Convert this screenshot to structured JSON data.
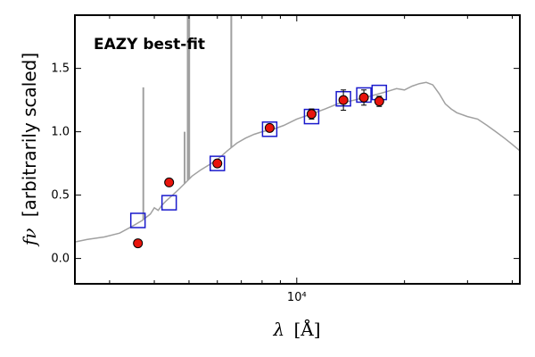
{
  "chart_data": {
    "type": "scatter",
    "annotation": "EAZY best-fit",
    "xlabel_symbol": "λ",
    "xlabel_unit": "[Å]",
    "ylabel_symbol": "fν",
    "ylabel_text": "[arbitrarily scaled]",
    "x_scale": "log",
    "xlim": [
      2400,
      42000
    ],
    "ylim": [
      -0.2,
      1.92
    ],
    "x_ticklabels": [
      {
        "value": 10000,
        "label": "10⁴"
      }
    ],
    "y_ticks": [
      0.0,
      0.5,
      1.0,
      1.5
    ],
    "y_ticklabels": [
      "0.0",
      "0.5",
      "1.0",
      "1.5"
    ],
    "grid": false,
    "colors": {
      "observed": "#e8140c",
      "model_photometry": "#1a1acc",
      "template": "#a0a0a0",
      "annotation": "#ff0000"
    },
    "observed_photometry": [
      {
        "x": 3600,
        "y": 0.12,
        "err": 0.02
      },
      {
        "x": 4400,
        "y": 0.6,
        "err": 0.02
      },
      {
        "x": 6000,
        "y": 0.75,
        "err": 0.02
      },
      {
        "x": 8400,
        "y": 1.03,
        "err": 0.02
      },
      {
        "x": 11000,
        "y": 1.14,
        "err": 0.04
      },
      {
        "x": 13500,
        "y": 1.25,
        "err": 0.08
      },
      {
        "x": 15400,
        "y": 1.27,
        "err": 0.06
      },
      {
        "x": 17000,
        "y": 1.24,
        "err": 0.04
      }
    ],
    "model_photometry": [
      {
        "x": 3600,
        "y": 0.3
      },
      {
        "x": 4400,
        "y": 0.44
      },
      {
        "x": 6000,
        "y": 0.75
      },
      {
        "x": 8400,
        "y": 1.02
      },
      {
        "x": 11000,
        "y": 1.12
      },
      {
        "x": 13500,
        "y": 1.26
      },
      {
        "x": 15400,
        "y": 1.29
      },
      {
        "x": 17000,
        "y": 1.31
      }
    ],
    "template_sed": [
      [
        2400,
        0.13
      ],
      [
        2600,
        0.15
      ],
      [
        2900,
        0.17
      ],
      [
        3200,
        0.2
      ],
      [
        3500,
        0.26
      ],
      [
        3700,
        0.3
      ],
      [
        3900,
        0.35
      ],
      [
        4000,
        0.4
      ],
      [
        4100,
        0.38
      ],
      [
        4200,
        0.42
      ],
      [
        4300,
        0.45
      ],
      [
        4500,
        0.5
      ],
      [
        4700,
        0.55
      ],
      [
        4900,
        0.6
      ],
      [
        5100,
        0.65
      ],
      [
        5400,
        0.7
      ],
      [
        5700,
        0.74
      ],
      [
        6000,
        0.78
      ],
      [
        6400,
        0.85
      ],
      [
        6800,
        0.91
      ],
      [
        7200,
        0.95
      ],
      [
        7600,
        0.98
      ],
      [
        8000,
        1.0
      ],
      [
        8600,
        1.02
      ],
      [
        9200,
        1.05
      ],
      [
        10000,
        1.1
      ],
      [
        11000,
        1.14
      ],
      [
        12000,
        1.18
      ],
      [
        13000,
        1.22
      ],
      [
        14000,
        1.24
      ],
      [
        15000,
        1.26
      ],
      [
        16000,
        1.28
      ],
      [
        17000,
        1.3
      ],
      [
        18000,
        1.32
      ],
      [
        19000,
        1.34
      ],
      [
        20000,
        1.33
      ],
      [
        21000,
        1.36
      ],
      [
        22000,
        1.38
      ],
      [
        23000,
        1.39
      ],
      [
        24000,
        1.37
      ],
      [
        25000,
        1.3
      ],
      [
        26000,
        1.22
      ],
      [
        27000,
        1.18
      ],
      [
        28000,
        1.15
      ],
      [
        30000,
        1.12
      ],
      [
        32000,
        1.1
      ],
      [
        34000,
        1.05
      ],
      [
        36000,
        1.0
      ],
      [
        38000,
        0.95
      ],
      [
        40000,
        0.9
      ],
      [
        42000,
        0.85
      ]
    ],
    "emission_lines": [
      {
        "x": 3727,
        "y": 1.35
      },
      {
        "x": 4861,
        "y": 1.0
      },
      {
        "x": 4959,
        "y": 1.92
      },
      {
        "x": 5007,
        "y": 1.92
      },
      {
        "x": 6563,
        "y": 1.92
      }
    ]
  }
}
